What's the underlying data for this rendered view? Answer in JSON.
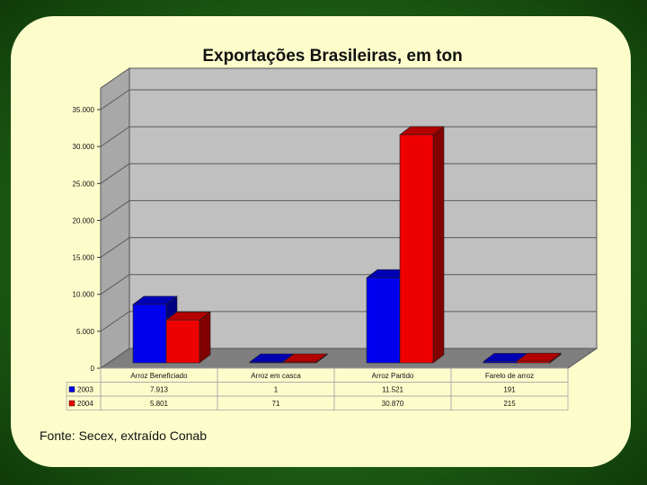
{
  "title": "Exportações Brasileiras, em ton",
  "source": "Fonte: Secex, extraído Conab",
  "chart_data": {
    "type": "bar",
    "title": "Exportações Brasileiras, em ton",
    "categories": [
      "Arroz Beneficiado",
      "Arroz em casca",
      "Arroz Partido",
      "Farelo de arroz"
    ],
    "series": [
      {
        "name": "2003",
        "values": [
          7913,
          1,
          11521,
          191
        ],
        "labels": [
          "7.913",
          "1",
          "11.521",
          "191"
        ],
        "color": "#0000ee"
      },
      {
        "name": "2004",
        "values": [
          5801,
          71,
          30870,
          215
        ],
        "labels": [
          "5.801",
          "71",
          "30.870",
          "215"
        ],
        "color": "#ee0000"
      }
    ],
    "yticks": [
      "0",
      "5.000",
      "10.000",
      "15.000",
      "20.000",
      "25.000",
      "30.000",
      "35.000"
    ],
    "ylim": [
      0,
      35000
    ],
    "grid": true,
    "data_table": true,
    "style": "3d",
    "colors": {
      "wall": "#c0c0c0",
      "floor": "#7f7f7f",
      "sidewall": "#a8a8a8"
    }
  }
}
